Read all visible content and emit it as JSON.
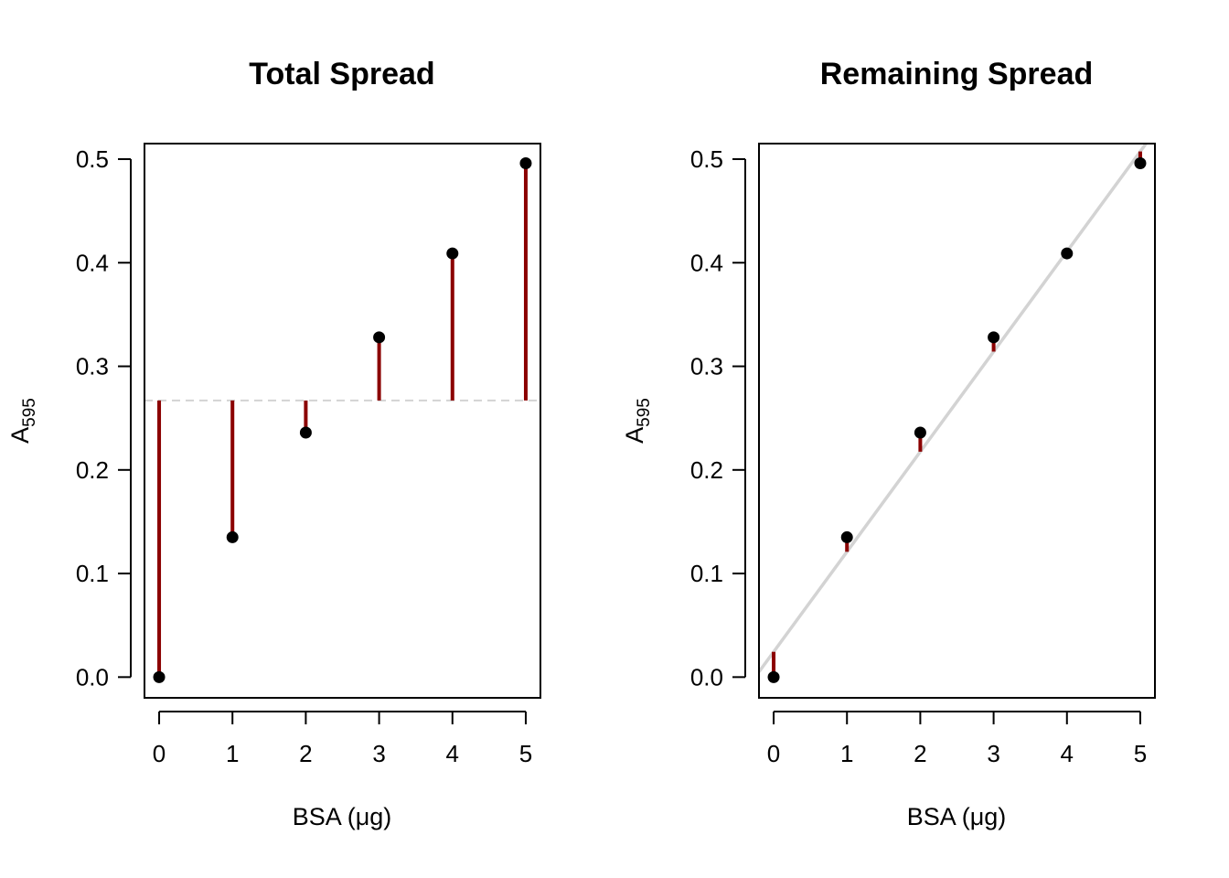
{
  "chart_data": [
    {
      "type": "scatter",
      "title": "Total Spread",
      "xlabel": "BSA (μg)",
      "ylabel_main": "A",
      "ylabel_sub": "595",
      "xlim": [
        -0.2,
        5.2
      ],
      "ylim": [
        -0.02,
        0.515
      ],
      "xticks": [
        0,
        1,
        2,
        3,
        4,
        5
      ],
      "yticks": [
        0.0,
        0.1,
        0.2,
        0.3,
        0.4,
        0.5
      ],
      "ytick_labels": [
        "0.0",
        "0.1",
        "0.2",
        "0.3",
        "0.4",
        "0.5"
      ],
      "x": [
        0,
        1,
        2,
        3,
        4,
        5
      ],
      "y": [
        0.0,
        0.135,
        0.236,
        0.328,
        0.409,
        0.496
      ],
      "reference": {
        "kind": "mean",
        "y": 0.267,
        "style": "dashed",
        "color": "#d3d3d3"
      },
      "residual_color": "#8b0000",
      "point_color": "#000000"
    },
    {
      "type": "scatter",
      "title": "Remaining Spread",
      "xlabel": "BSA (μg)",
      "ylabel_main": "A",
      "ylabel_sub": "595",
      "xlim": [
        -0.2,
        5.2
      ],
      "ylim": [
        -0.02,
        0.515
      ],
      "xticks": [
        0,
        1,
        2,
        3,
        4,
        5
      ],
      "yticks": [
        0.0,
        0.1,
        0.2,
        0.3,
        0.4,
        0.5
      ],
      "ytick_labels": [
        "0.0",
        "0.1",
        "0.2",
        "0.3",
        "0.4",
        "0.5"
      ],
      "x": [
        0,
        1,
        2,
        3,
        4,
        5
      ],
      "y": [
        0.0,
        0.135,
        0.236,
        0.328,
        0.409,
        0.496
      ],
      "reference": {
        "kind": "regression",
        "intercept": 0.0244,
        "slope": 0.0966,
        "style": "solid",
        "color": "#d3d3d3"
      },
      "residual_color": "#8b0000",
      "point_color": "#000000"
    }
  ]
}
